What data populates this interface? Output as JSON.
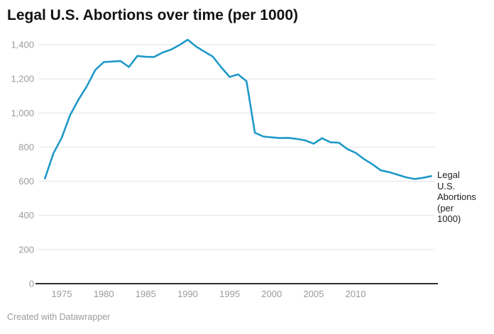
{
  "title": "Legal U.S. Abortions over time (per 1000)",
  "footer": {
    "credit": "Created with Datawrapper"
  },
  "series_label": "Legal U.S. Abortions (per 1000)",
  "colors": {
    "line": "#1f99c9",
    "grid": "#e2e2e2",
    "axis": "#2e2e2e",
    "tick_label": "#9b9b9b",
    "title_text": "#121212",
    "credit_text": "#9b9b9b",
    "background": "#ffffff"
  },
  "chart_data": {
    "type": "line",
    "title": "Legal U.S. Abortions over time (per 1000)",
    "xlabel": "",
    "ylabel": "",
    "grid": "horizontal",
    "legend_position": "right-of-line-end",
    "legend": "Legal U.S. Abortions (per 1000)",
    "xlim": [
      1972.3,
      2019.8
    ],
    "ylim": [
      0,
      1400
    ],
    "x": [
      1973,
      1974,
      1975,
      1976,
      1977,
      1978,
      1979,
      1980,
      1981,
      1982,
      1983,
      1984,
      1985,
      1986,
      1987,
      1988,
      1989,
      1990,
      1991,
      1992,
      1993,
      1994,
      1995,
      1996,
      1997,
      1998,
      1999,
      2000,
      2001,
      2002,
      2003,
      2004,
      2005,
      2006,
      2007,
      2008,
      2009,
      2010,
      2011,
      2012,
      2013,
      2014,
      2015,
      2016,
      2017,
      2018,
      2019
    ],
    "series": [
      {
        "name": "Legal U.S. Abortions (per 1000)",
        "values": [
          616,
          763,
          855,
          988,
          1079,
          1158,
          1252,
          1298,
          1301,
          1304,
          1269,
          1334,
          1329,
          1328,
          1354,
          1371,
          1397,
          1429,
          1389,
          1359,
          1330,
          1267,
          1211,
          1226,
          1186,
          884,
          862,
          857,
          853,
          854,
          848,
          839,
          820,
          852,
          828,
          826,
          789,
          766,
          730,
          699,
          664,
          653,
          638,
          623,
          613,
          620,
          630
        ]
      }
    ],
    "y_ticks": [
      {
        "value": 0,
        "label": "0"
      },
      {
        "value": 200,
        "label": "200"
      },
      {
        "value": 400,
        "label": "400"
      },
      {
        "value": 600,
        "label": "600"
      },
      {
        "value": 800,
        "label": "800"
      },
      {
        "value": 1000,
        "label": "1,000"
      },
      {
        "value": 1200,
        "label": "1,200"
      },
      {
        "value": 1400,
        "label": "1,400"
      }
    ],
    "x_ticks": [
      {
        "value": 1975,
        "label": "1975"
      },
      {
        "value": 1980,
        "label": "1980"
      },
      {
        "value": 1985,
        "label": "1985"
      },
      {
        "value": 1990,
        "label": "1990"
      },
      {
        "value": 1995,
        "label": "1995"
      },
      {
        "value": 2000,
        "label": "2000"
      },
      {
        "value": 2005,
        "label": "2005"
      },
      {
        "value": 2010,
        "label": "2010"
      }
    ]
  }
}
